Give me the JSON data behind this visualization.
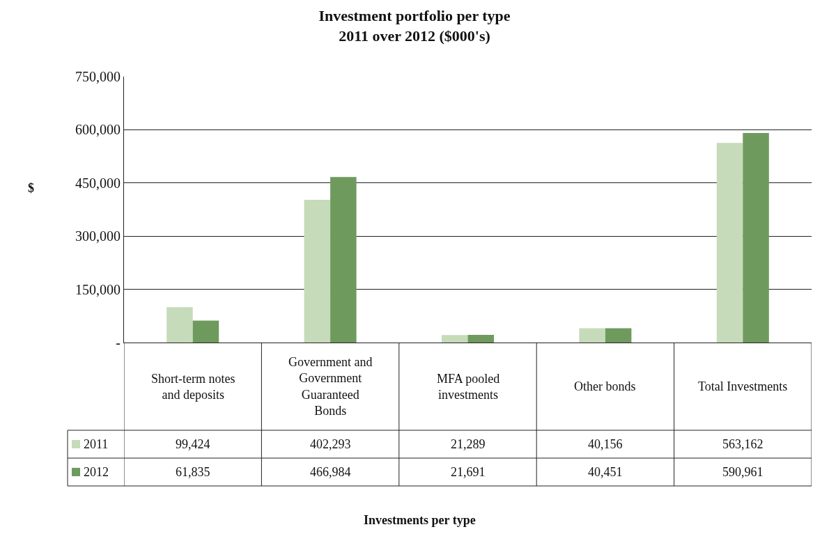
{
  "chart_data": {
    "type": "bar",
    "title": "Investment portfolio per type\n2011 over 2012 ($000's)",
    "ylabel": "$",
    "annotations": [
      "Investments per type"
    ],
    "categories": [
      "Short-term notes\nand deposits",
      "Government and\nGovernment\nGuaranteed\nBonds",
      "MFA pooled\ninvestments",
      "Other bonds",
      "Total Investments"
    ],
    "series": [
      {
        "name": "2011",
        "color": "#c6dbb9",
        "values": [
          99424,
          402293,
          21289,
          40156,
          563162
        ],
        "value_labels": [
          "99,424",
          "402,293",
          "21,289",
          "40,156",
          "563,162"
        ]
      },
      {
        "name": "2012",
        "color": "#6f9a5e",
        "values": [
          61835,
          466984,
          21691,
          40451,
          590961
        ],
        "value_labels": [
          "61,835",
          "466,984",
          "21,691",
          "40,451",
          "590,961"
        ]
      }
    ],
    "ylim": [
      0,
      750000
    ],
    "yticks": [
      {
        "value": 0,
        "label": "-"
      },
      {
        "value": 150000,
        "label": "150,000"
      },
      {
        "value": 300000,
        "label": "300,000"
      },
      {
        "value": 450000,
        "label": "450,000"
      },
      {
        "value": 600000,
        "label": "600,000"
      },
      {
        "value": 750000,
        "label": "750,000"
      }
    ],
    "grid": "y",
    "legend": "bottom left"
  }
}
